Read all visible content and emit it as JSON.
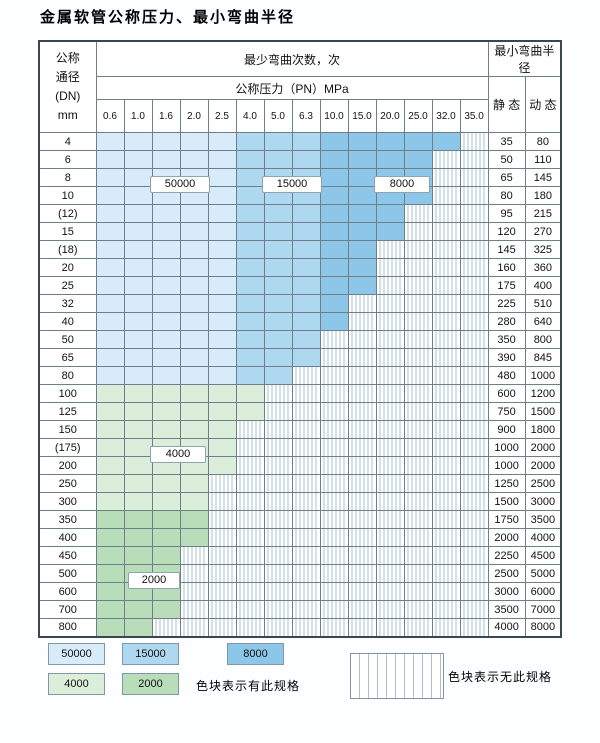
{
  "title": "金属软管公称压力、最小弯曲半径",
  "colors": {
    "c50000": "#d7ecf8",
    "c15000": "#aed8f0",
    "c8000": "#8cc6e8",
    "c4000": "#dbeeda",
    "c2000": "#b9ddb8",
    "hatch_line": "#a9c0d2",
    "border": "#6f7f8a",
    "outer_border": "#3a4750"
  },
  "chart_data": {
    "type": "table",
    "title": "金属软管公称压力、最小弯曲半径",
    "header": {
      "dn_lines": [
        "公称",
        "通径",
        "(DN)",
        "mm"
      ],
      "cycles_title": "最少弯曲次数，次",
      "pressure_title": "公称压力（PN）MPa",
      "radius_title": "最小弯曲半径",
      "static_label": "静 态",
      "dynamic_label": "动 态",
      "pressure_cols": [
        "0.6",
        "1.0",
        "1.6",
        "2.0",
        "2.5",
        "4.0",
        "5.0",
        "6.3",
        "10.0",
        "15.0",
        "20.0",
        "25.0",
        "32.0",
        "35.0"
      ]
    },
    "cycle_levels": [
      50000,
      15000,
      8000,
      4000,
      2000
    ],
    "blue_zone_limits": {
      "c50000": 5,
      "c15000": 8,
      "c8000": 14
    },
    "rows": [
      {
        "dn": "4",
        "colored": 13,
        "palette": "blue",
        "static": "35",
        "dynamic": "80"
      },
      {
        "dn": "6",
        "colored": 12,
        "palette": "blue",
        "static": "50",
        "dynamic": "110"
      },
      {
        "dn": "8",
        "colored": 12,
        "palette": "blue",
        "static": "65",
        "dynamic": "145"
      },
      {
        "dn": "10",
        "colored": 12,
        "palette": "blue",
        "static": "80",
        "dynamic": "180"
      },
      {
        "dn": "(12)",
        "colored": 11,
        "palette": "blue",
        "static": "95",
        "dynamic": "215"
      },
      {
        "dn": "15",
        "colored": 11,
        "palette": "blue",
        "static": "120",
        "dynamic": "270"
      },
      {
        "dn": "(18)",
        "colored": 10,
        "palette": "blue",
        "static": "145",
        "dynamic": "325"
      },
      {
        "dn": "20",
        "colored": 10,
        "palette": "blue",
        "static": "160",
        "dynamic": "360"
      },
      {
        "dn": "25",
        "colored": 10,
        "palette": "blue",
        "static": "175",
        "dynamic": "400"
      },
      {
        "dn": "32",
        "colored": 9,
        "palette": "blue",
        "static": "225",
        "dynamic": "510"
      },
      {
        "dn": "40",
        "colored": 9,
        "palette": "blue",
        "static": "280",
        "dynamic": "640"
      },
      {
        "dn": "50",
        "colored": 8,
        "palette": "blue",
        "static": "350",
        "dynamic": "800"
      },
      {
        "dn": "65",
        "colored": 8,
        "palette": "blue",
        "static": "390",
        "dynamic": "845"
      },
      {
        "dn": "80",
        "colored": 7,
        "palette": "blue",
        "static": "480",
        "dynamic": "1000"
      },
      {
        "dn": "100",
        "colored": 6,
        "palette": "green4000",
        "static": "600",
        "dynamic": "1200"
      },
      {
        "dn": "125",
        "colored": 6,
        "palette": "green4000",
        "static": "750",
        "dynamic": "1500"
      },
      {
        "dn": "150",
        "colored": 5,
        "palette": "green4000",
        "static": "900",
        "dynamic": "1800"
      },
      {
        "dn": "(175)",
        "colored": 5,
        "palette": "green4000",
        "static": "1000",
        "dynamic": "2000"
      },
      {
        "dn": "200",
        "colored": 5,
        "palette": "green4000",
        "static": "1000",
        "dynamic": "2000"
      },
      {
        "dn": "250",
        "colored": 4,
        "palette": "green4000",
        "static": "1250",
        "dynamic": "2500"
      },
      {
        "dn": "300",
        "colored": 4,
        "palette": "green4000",
        "static": "1500",
        "dynamic": "3000"
      },
      {
        "dn": "350",
        "colored": 4,
        "palette": "green2000",
        "static": "1750",
        "dynamic": "3500"
      },
      {
        "dn": "400",
        "colored": 4,
        "palette": "green2000",
        "static": "2000",
        "dynamic": "4000"
      },
      {
        "dn": "450",
        "colored": 3,
        "palette": "green2000",
        "static": "2250",
        "dynamic": "4500"
      },
      {
        "dn": "500",
        "colored": 3,
        "palette": "green2000",
        "static": "2500",
        "dynamic": "5000"
      },
      {
        "dn": "600",
        "colored": 3,
        "palette": "green2000",
        "static": "3000",
        "dynamic": "6000"
      },
      {
        "dn": "700",
        "colored": 3,
        "palette": "green2000",
        "static": "3500",
        "dynamic": "7000"
      },
      {
        "dn": "800",
        "colored": 2,
        "palette": "green2000",
        "static": "4000",
        "dynamic": "8000"
      }
    ]
  },
  "grid_labels": {
    "b50000": "50000",
    "b15000": "15000",
    "b8000": "8000",
    "b4000": "4000",
    "b2000": "2000"
  },
  "legend": {
    "swatches": [
      {
        "label": "50000",
        "color_key": "c50000"
      },
      {
        "label": "15000",
        "color_key": "c15000"
      },
      {
        "label": "8000",
        "color_key": "c8000"
      },
      {
        "label": "4000",
        "color_key": "c4000"
      },
      {
        "label": "2000",
        "color_key": "c2000"
      }
    ],
    "has_spec_text": "色块表示有此规格",
    "no_spec_text": "色块表示无此规格"
  }
}
